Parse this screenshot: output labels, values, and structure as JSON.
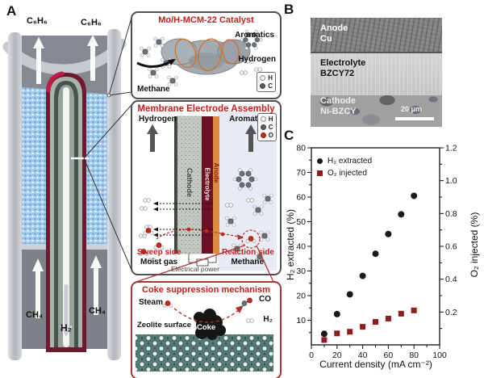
{
  "colors": {
    "accent_red": "#c0211d",
    "electrolyte_maroon": "#6b1026",
    "anode_orange": "#de8a3e",
    "catalyst_bed_blue": "#a9ceee",
    "zeolite_teal": "#547a73",
    "series_h2_black": "#1a1a1a",
    "series_o2_red": "#8f1d1d"
  },
  "panel_a": {
    "label": "A",
    "benzene_out_left": "C₆H₆",
    "benzene_out_right": "C₆H₆",
    "methane_in_left": "CH₄",
    "methane_in_right": "CH₄",
    "hydrogen_out": "H₂"
  },
  "catalyst_box": {
    "title": "Mo/H-MCM-22 Catalyst",
    "aromatics_label": "Aromatics",
    "hydrogen_label": "Hydrogen",
    "methane_label": "Methane",
    "legend": [
      {
        "symbol": "H"
      },
      {
        "symbol": "C"
      }
    ]
  },
  "mea_box": {
    "title": "Membrane Electrode Assembly",
    "hydrogen_label": "Hydrogen",
    "aromatics_label": "Aromatics",
    "cathode_label": "Cathode",
    "electrolyte_label": "Electrolyte",
    "anode_label": "Anode",
    "sweep_side_label": "Sweep side",
    "moist_gas_label": "Moist gas",
    "reaction_side_label": "Reaction side",
    "methane_label": "Methane",
    "electrical_power_label": "Electrical power",
    "legend": [
      {
        "symbol": "H"
      },
      {
        "symbol": "C"
      },
      {
        "symbol": "O"
      }
    ]
  },
  "coke_box": {
    "title": "Coke suppression mechanism",
    "steam_label": "Steam",
    "co_label": "CO",
    "h2_label": "H₂",
    "zeolite_surface_label": "Zeolite surface",
    "coke_label": "Coke"
  },
  "panel_b": {
    "label": "B",
    "layers": [
      {
        "name": "Anode",
        "material": "Cu"
      },
      {
        "name": "Electrolyte",
        "material": "BZCY72"
      },
      {
        "name": "Cathode",
        "material": "Ni-BZCY"
      }
    ],
    "scale_bar": "20 μm"
  },
  "panel_c": {
    "label": "C"
  },
  "chart_data": {
    "type": "scatter",
    "x": [
      10,
      20,
      30,
      40,
      50,
      60,
      70,
      80
    ],
    "series": [
      {
        "name": "H₂ extracted",
        "axis": "left",
        "marker": "circle",
        "color": "#1a1a1a",
        "values": [
          4.5,
          12.5,
          20.5,
          28,
          37,
          45,
          53,
          60.5
        ]
      },
      {
        "name": "O₂ injected",
        "axis": "right",
        "marker": "square",
        "color": "#8f1d1d",
        "values": [
          0.03,
          0.07,
          0.08,
          0.11,
          0.14,
          0.16,
          0.19,
          0.21
        ]
      }
    ],
    "xlabel": "Current density (mA cm⁻²)",
    "ylabel_left": "H₂ extracted (%)",
    "ylabel_right": "O₂ injected (%)",
    "xlim": [
      0,
      100
    ],
    "ylim_left": [
      0,
      80
    ],
    "ylim_right": [
      0,
      1.2
    ],
    "xticks": [
      0,
      20,
      40,
      60,
      80,
      100
    ],
    "yticks_left": [
      10,
      20,
      30,
      40,
      50,
      60,
      70,
      80
    ],
    "yticks_right": [
      "0.2",
      "0.4",
      "0.6",
      "0.8",
      "1.0",
      "1.2"
    ],
    "grid": false,
    "legend_position": "top-left"
  }
}
